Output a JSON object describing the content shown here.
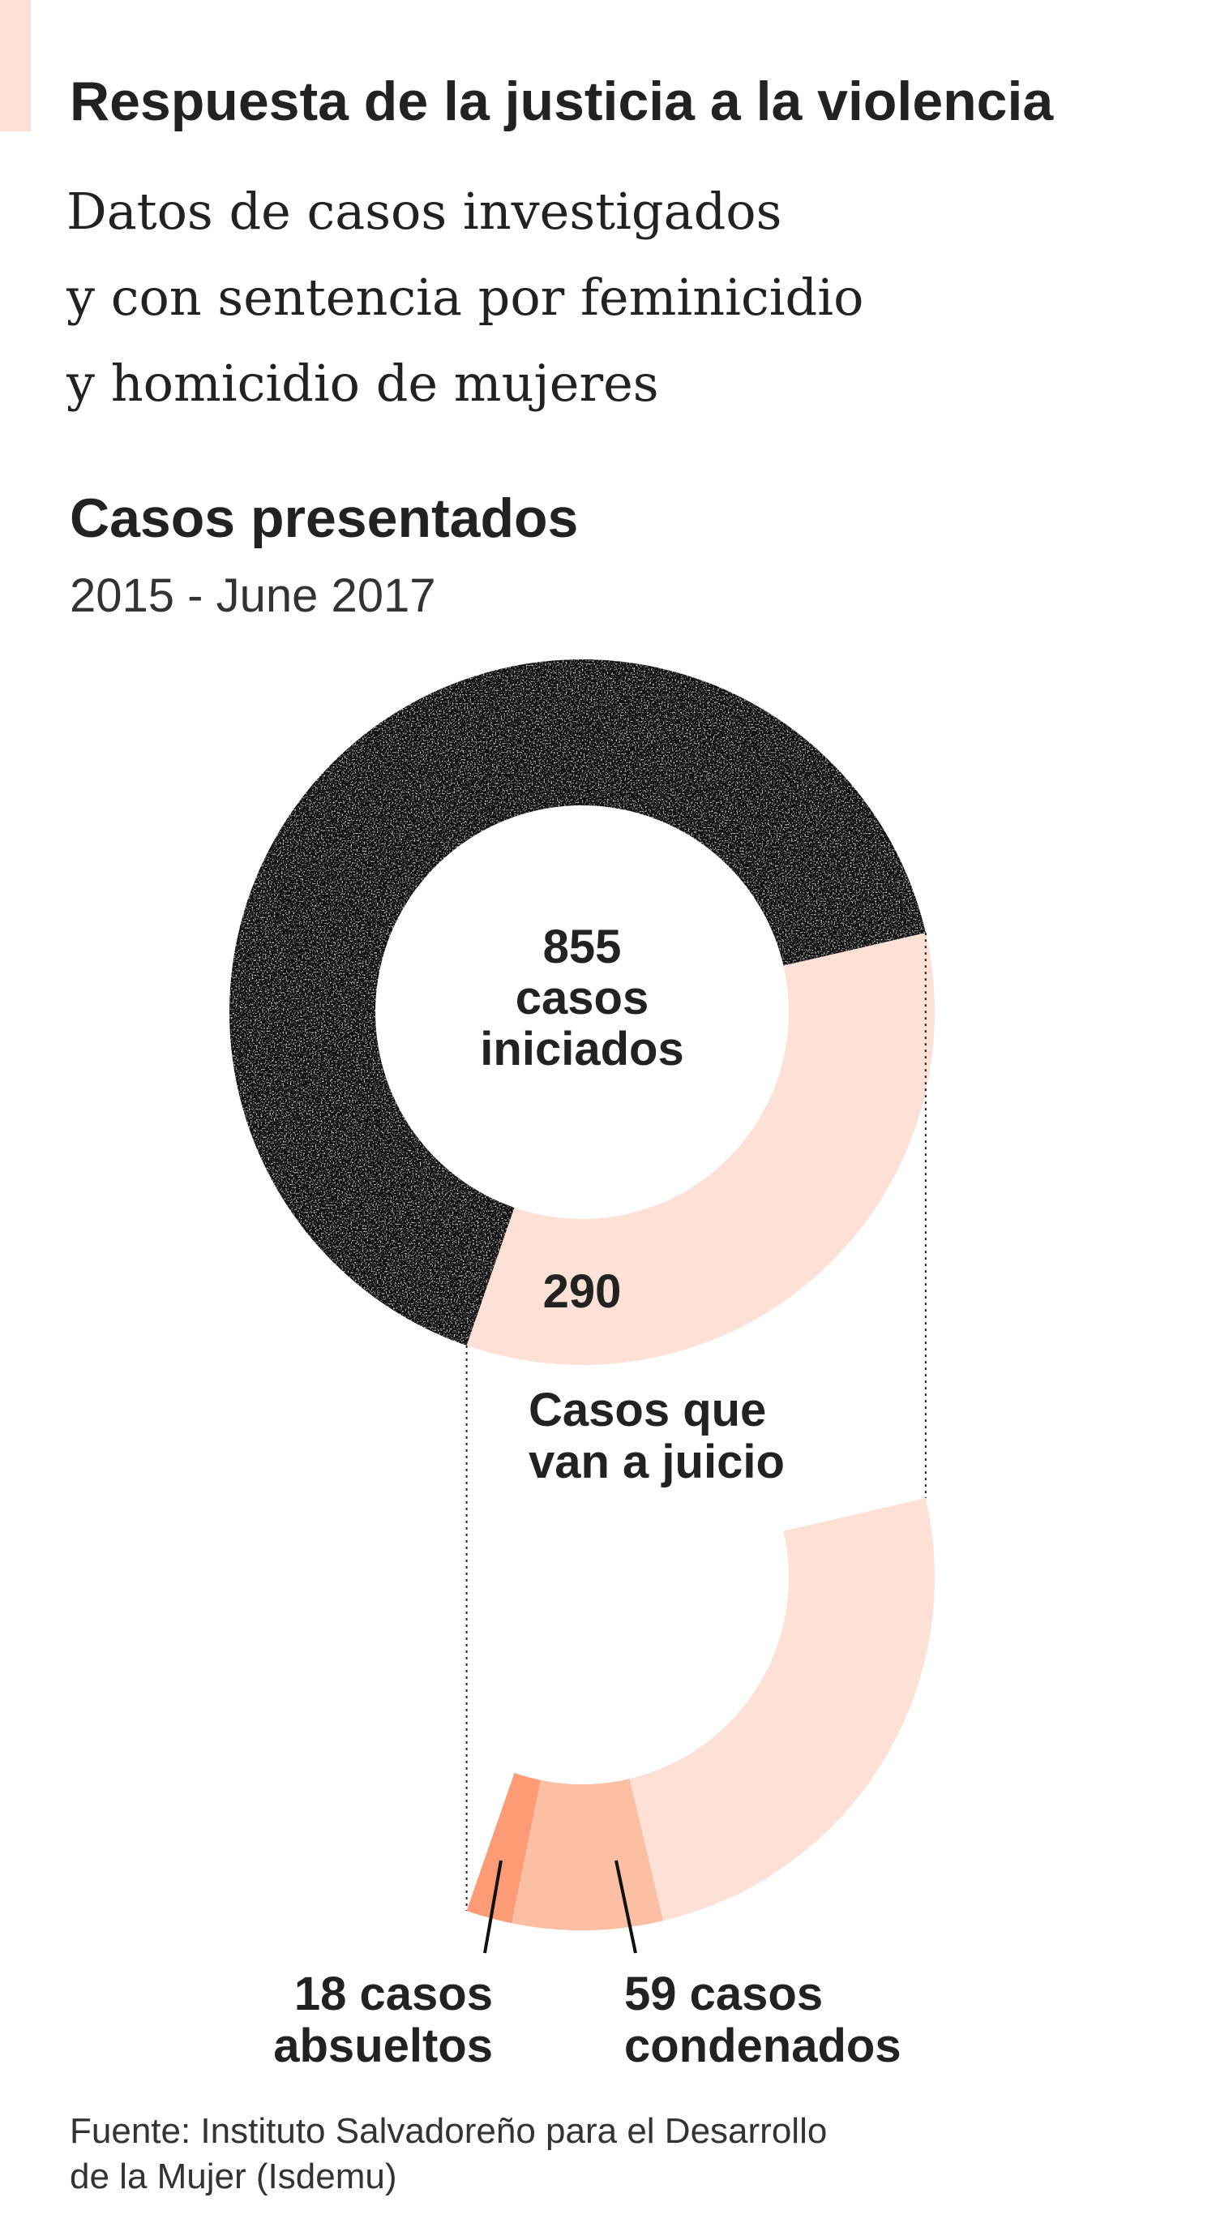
{
  "header": {
    "title": "Respuesta de la justicia a la violencia",
    "subtitle_lines": [
      "Datos de casos investigados",
      "y con sentencia por feminicidio",
      "y homicidio de mujeres"
    ]
  },
  "section": {
    "title": "Casos presentados",
    "period": "2015 - June 2017"
  },
  "source": {
    "line1": "Fuente: Instituto Salvadoreño para el Desarrollo",
    "line2": "de la Mujer (Isdemu)"
  },
  "colors": {
    "dark": "#111111",
    "light_peach": "#fde0d6",
    "medium_peach": "#fbbfa4",
    "dark_peach": "#fc9b76",
    "text": "#222222"
  },
  "chart_data": [
    {
      "type": "pie",
      "variant": "donut",
      "center_label_lines": [
        "855",
        "casos",
        "iniciados"
      ],
      "total": 855,
      "slices": [
        {
          "label": "Casos que van a juicio",
          "value": 290,
          "value_label": "290",
          "color": "#fde0d6"
        },
        {
          "value": 565,
          "color": "#111111"
        }
      ],
      "label_lines": [
        "Casos que",
        "van a juicio"
      ]
    },
    {
      "type": "pie",
      "variant": "partial-donut-breakdown",
      "total": 290,
      "slices": [
        {
          "label_lines": [
            "18 casos",
            "absueltos"
          ],
          "value": 18,
          "color": "#fc9b76"
        },
        {
          "label_lines": [
            "59 casos",
            "condenados"
          ],
          "value": 59,
          "color": "#fbbfa4"
        },
        {
          "value": 213,
          "color": "#fde0d6"
        }
      ]
    }
  ]
}
